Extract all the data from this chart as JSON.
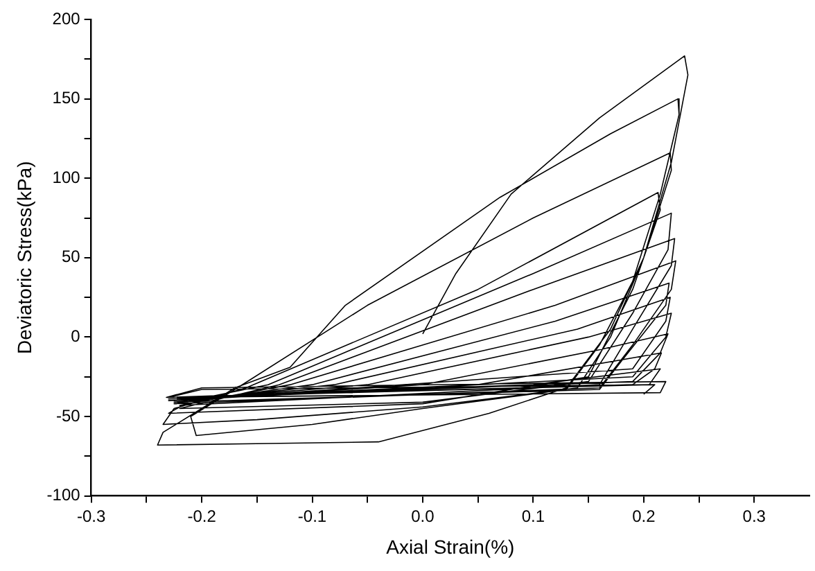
{
  "chart_data": {
    "type": "line",
    "xlabel": "Axial Strain(%)",
    "ylabel": "Deviatoric Stress(kPa)",
    "x": [
      0,
      0.03,
      0.08,
      0.16,
      0.237,
      0.24,
      0.225,
      0.2,
      0.17,
      0.13,
      0.06,
      -0.04,
      -0.14,
      -0.24,
      -0.235,
      -0.2,
      -0.17,
      -0.12,
      -0.07,
      0.07,
      0.17,
      0.231,
      0.232,
      0.215,
      0.19,
      0.16,
      0.13,
      0,
      -0.1,
      -0.205,
      -0.21,
      -0.17,
      -0.05,
      0.1,
      0.224,
      0.225,
      0.2,
      0.17,
      0.14,
      0,
      -0.15,
      -0.235,
      -0.225,
      -0.16,
      0.05,
      0.213,
      0.215,
      0.19,
      0.15,
      0,
      -0.23,
      -0.21,
      -0.14,
      0.1,
      0.225,
      0.222,
      0.19,
      0.15,
      0,
      -0.22,
      -0.13,
      0.1,
      0.228,
      0.225,
      0.19,
      0.16,
      -0.22,
      -0.12,
      0.12,
      0.229,
      0.225,
      0.19,
      0.16,
      -0.225,
      -0.1,
      0.12,
      0.223,
      0.22,
      0.18,
      0.16,
      -0.225,
      -0.08,
      0.14,
      0.224,
      0.22,
      0.19,
      -0.225,
      -0.05,
      0.15,
      0.225,
      0.22,
      0.19,
      -0.23,
      0,
      0.16,
      0.222,
      0.215,
      0.19,
      -0.23,
      0.05,
      0.216,
      0.21,
      0.19,
      -0.23,
      0.1,
      0.215,
      0.205,
      -0.232,
      -0.2,
      0.22,
      0.215,
      -0.23,
      -0.2,
      0.21,
      0.2
    ],
    "values": [
      2,
      40,
      90,
      138,
      177,
      165,
      110,
      50,
      5,
      -32,
      -48,
      -66,
      -67,
      -68,
      -60,
      -45,
      -32,
      -19,
      20,
      88,
      128,
      150,
      140,
      90,
      35,
      -5,
      -33,
      -45,
      -55,
      -62,
      -50,
      -33,
      20,
      75,
      116,
      105,
      50,
      0,
      -32,
      -44,
      -52,
      -55,
      -45,
      -32,
      30,
      91,
      80,
      30,
      -25,
      -42,
      -48,
      -40,
      -30,
      40,
      78,
      55,
      15,
      -28,
      -41,
      -45,
      -30,
      30,
      62,
      45,
      5,
      -30,
      -43,
      -30,
      20,
      48,
      30,
      -5,
      -32,
      -42,
      -30,
      10,
      34,
      20,
      -15,
      -33,
      -41,
      -30,
      5,
      25,
      10,
      -20,
      -40,
      -30,
      0,
      15,
      0,
      -25,
      -40,
      -30,
      -8,
      2,
      -10,
      -28,
      -39,
      -30,
      -10,
      -20,
      -30,
      -38,
      -30,
      -20,
      -30,
      -38,
      -32,
      -28,
      -35,
      -38,
      -33,
      -30,
      -36
    ],
    "color": "#000000",
    "marker": "none",
    "line_style": "solid",
    "grid": false,
    "legend": false,
    "xlim": [
      -0.3,
      0.35
    ],
    "xticks": [
      -0.3,
      {
        "value": -0.25,
        "label": null
      },
      -0.2,
      {
        "value": -0.15,
        "label": null
      },
      -0.1,
      {
        "value": -0.05,
        "label": null
      },
      {
        "value": 0,
        "label": "0.0"
      },
      {
        "value": 0.05,
        "label": null
      },
      0.1,
      {
        "value": 0.15,
        "label": null
      },
      0.2,
      {
        "value": 0.25,
        "label": null
      },
      0.3
    ],
    "ylim": [
      -100,
      200
    ],
    "yticks": [
      -100,
      {
        "value": -75,
        "label": null
      },
      -50,
      {
        "value": -25,
        "label": null
      },
      0,
      {
        "value": 25,
        "label": null
      },
      50,
      {
        "value": 75,
        "label": null
      },
      100,
      {
        "value": 125,
        "label": null
      },
      150,
      {
        "value": 175,
        "label": null
      },
      200
    ]
  }
}
